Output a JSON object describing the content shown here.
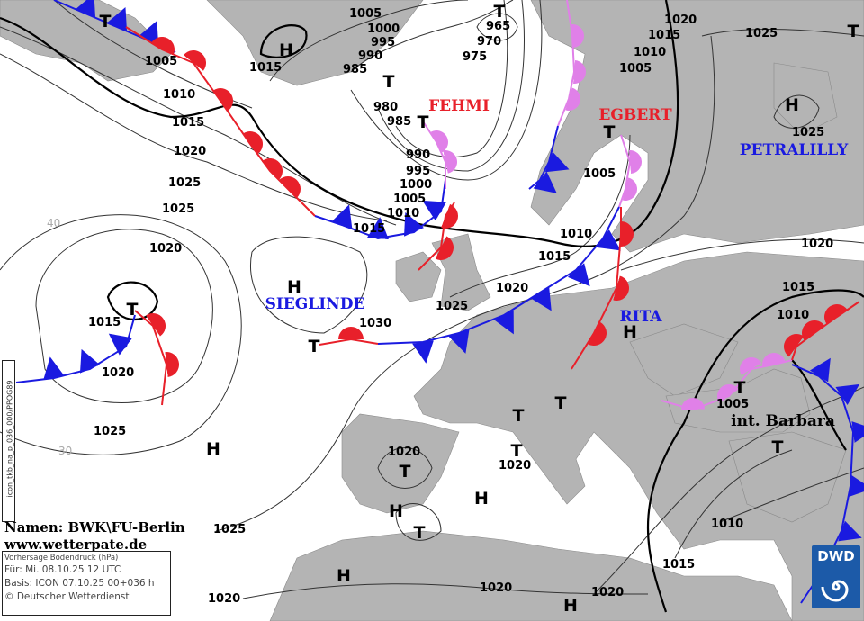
{
  "isobar_labels": [
    "1005",
    "1000",
    "995",
    "990",
    "985",
    "1015",
    "1005",
    "1010",
    "1015",
    "1020",
    "1025",
    "1025",
    "1020",
    "1015",
    "1020",
    "1025",
    "1025",
    "1020",
    "980",
    "985",
    "990",
    "995",
    "1000",
    "1005",
    "1010",
    "1015",
    "965",
    "970",
    "975",
    "1020",
    "1015",
    "1010",
    "1005",
    "1025",
    "1005",
    "1010",
    "1015",
    "1020",
    "1025",
    "1030",
    "1020",
    "1015",
    "1010",
    "1005",
    "1020",
    "1020",
    "1010",
    "1015",
    "1020",
    "1020",
    "1025"
  ],
  "pressure_centers": [
    "T",
    "H",
    "T",
    "T",
    "T",
    "T",
    "H",
    "T",
    "H",
    "T",
    "T",
    "H",
    "T",
    "T",
    "T",
    "T",
    "H",
    "T",
    "T",
    "H",
    "H",
    "T",
    "H",
    "H"
  ],
  "system_names": [
    {
      "name": "FEHMI",
      "color": "#e8202a"
    },
    {
      "name": "EGBERT",
      "color": "#e8202a"
    },
    {
      "name": "PETRALILLY",
      "color": "#1a1ae0"
    },
    {
      "name": "SIEGLINDE",
      "color": "#1a1ae0"
    },
    {
      "name": "RITA",
      "color": "#1a1ae0"
    },
    {
      "name": "int. Barbara",
      "color": "#000000"
    }
  ],
  "front_colors": {
    "cold": "#1a1ae0",
    "warm": "#e8202a",
    "occluded": "#e080e8"
  },
  "latitude_labels": [
    "40",
    "30"
  ],
  "credit": {
    "names": "Namen: BWK\\FU-Berlin",
    "url": "www.wetterpate.de"
  },
  "info": {
    "title": "Vorhersage Bodendruck (hPa)",
    "valid": "Für:  Mi. 08.10.25  12 UTC",
    "basis": "Basis: ICON  07.10.25 00+036 h",
    "copyright": "© Deutscher Wetterdienst"
  },
  "side_code": "icon_tkb_na_p_036_000/PPOG89",
  "logo": "DWD"
}
